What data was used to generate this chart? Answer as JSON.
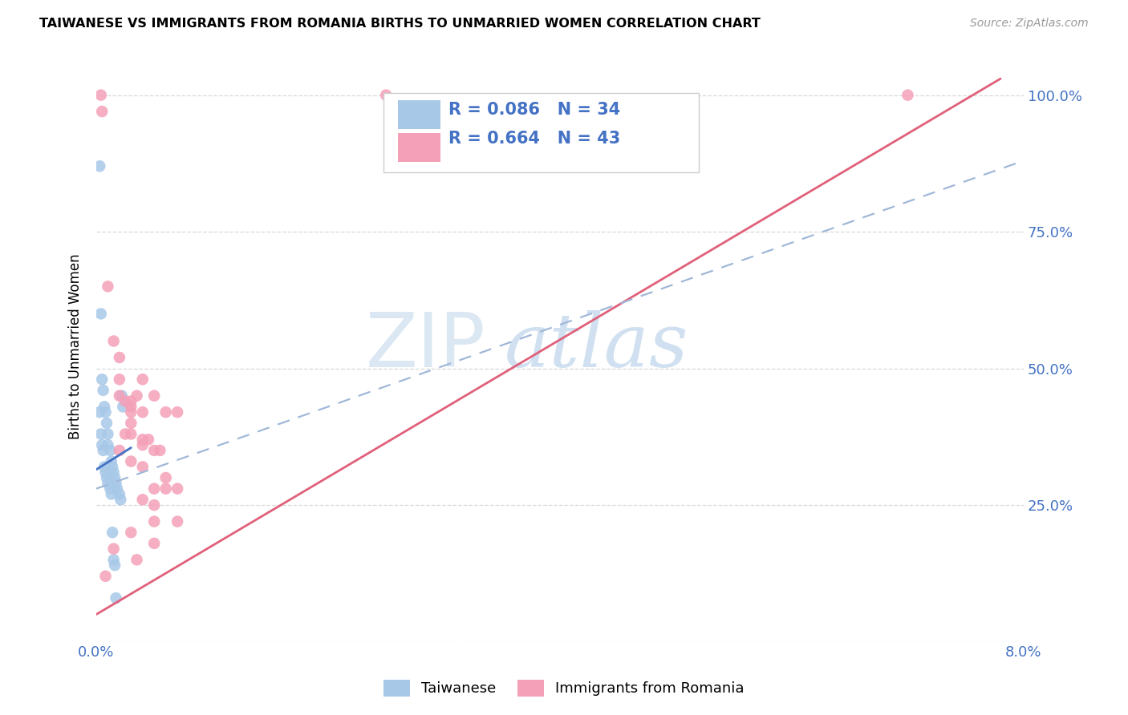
{
  "title": "TAIWANESE VS IMMIGRANTS FROM ROMANIA BIRTHS TO UNMARRIED WOMEN CORRELATION CHART",
  "source": "Source: ZipAtlas.com",
  "ylabel": "Births to Unmarried Women",
  "xmin": 0.0,
  "xmax": 0.08,
  "ymin": 0.0,
  "ymax": 1.08,
  "yticks": [
    0.0,
    0.25,
    0.5,
    0.75,
    1.0
  ],
  "ytick_labels": [
    "",
    "25.0%",
    "50.0%",
    "75.0%",
    "100.0%"
  ],
  "xtick_labels": [
    "0.0%",
    "8.0%"
  ],
  "legend_r_taiwan": "R = 0.086",
  "legend_n_taiwan": "N = 34",
  "legend_r_romania": "R = 0.664",
  "legend_n_romania": "N = 43",
  "taiwan_color": "#a8c8e8",
  "taiwan_line_color": "#4472c4",
  "romania_color": "#f4a0b8",
  "romania_line_color": "#e0607a",
  "dashed_line_color": "#a0b8d8",
  "watermark_zip": "ZIP",
  "watermark_atlas": "atlas",
  "background_color": "#ffffff",
  "grid_color": "#d8d8d8",
  "title_fontsize": 11.5,
  "tick_color": "#4472c4",
  "legend_text_color": "#4472c4",
  "taiwan_x": [
    0.0003,
    0.0004,
    0.0005,
    0.0006,
    0.0007,
    0.0008,
    0.0009,
    0.001,
    0.001,
    0.0012,
    0.0013,
    0.0014,
    0.0015,
    0.0016,
    0.0017,
    0.0018,
    0.002,
    0.0021,
    0.0022,
    0.0023,
    0.0003,
    0.0004,
    0.0005,
    0.0006,
    0.0007,
    0.0008,
    0.0009,
    0.001,
    0.0012,
    0.0013,
    0.0014,
    0.0015,
    0.0016,
    0.0017
  ],
  "taiwan_y": [
    0.87,
    0.6,
    0.48,
    0.46,
    0.43,
    0.42,
    0.4,
    0.38,
    0.36,
    0.35,
    0.33,
    0.32,
    0.31,
    0.3,
    0.29,
    0.28,
    0.27,
    0.26,
    0.45,
    0.43,
    0.42,
    0.38,
    0.36,
    0.35,
    0.32,
    0.31,
    0.3,
    0.29,
    0.28,
    0.27,
    0.2,
    0.15,
    0.14,
    0.08
  ],
  "romania_x": [
    0.0004,
    0.0005,
    0.001,
    0.0015,
    0.002,
    0.002,
    0.002,
    0.0025,
    0.003,
    0.003,
    0.003,
    0.003,
    0.003,
    0.0035,
    0.004,
    0.004,
    0.004,
    0.004,
    0.0045,
    0.005,
    0.005,
    0.005,
    0.005,
    0.0055,
    0.006,
    0.006,
    0.006,
    0.007,
    0.007,
    0.007,
    0.0015,
    0.002,
    0.003,
    0.004,
    0.005,
    0.0025,
    0.003,
    0.004,
    0.005,
    0.0035,
    0.025,
    0.07,
    0.0008
  ],
  "romania_y": [
    1.0,
    0.97,
    0.65,
    0.55,
    0.52,
    0.48,
    0.45,
    0.44,
    0.44,
    0.43,
    0.42,
    0.4,
    0.38,
    0.45,
    0.48,
    0.42,
    0.37,
    0.36,
    0.37,
    0.45,
    0.35,
    0.28,
    0.25,
    0.35,
    0.42,
    0.3,
    0.28,
    0.42,
    0.28,
    0.22,
    0.17,
    0.35,
    0.2,
    0.26,
    0.18,
    0.38,
    0.33,
    0.32,
    0.22,
    0.15,
    1.0,
    1.0,
    0.12
  ]
}
